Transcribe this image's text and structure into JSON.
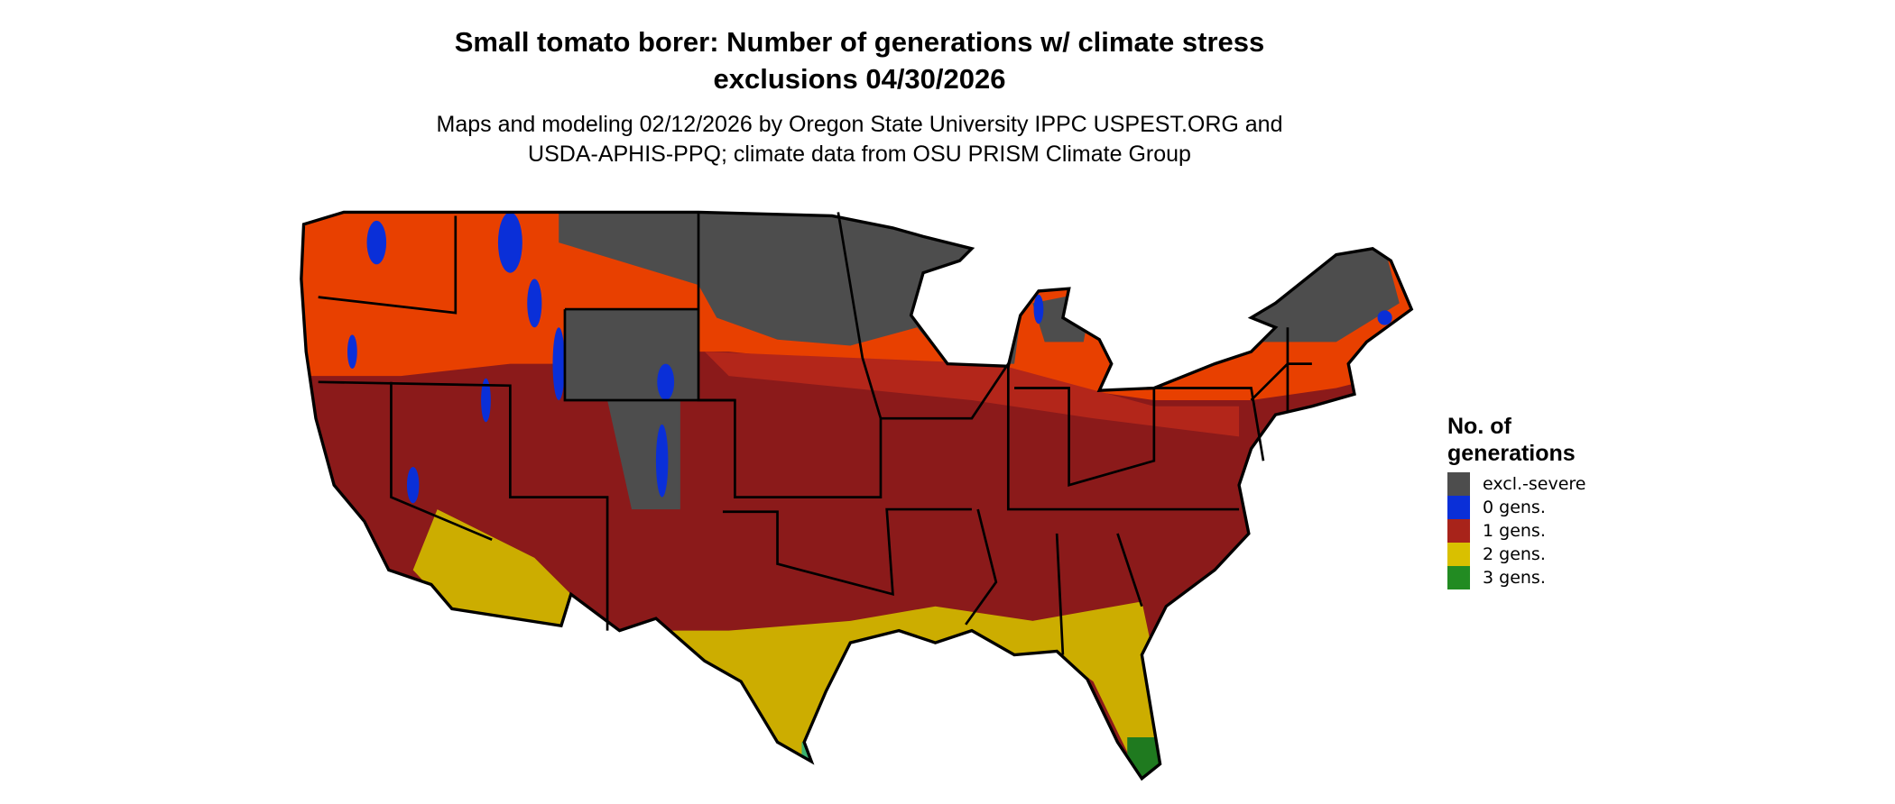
{
  "title": {
    "line1": "Small tomato borer: Number of generations w/ climate stress",
    "line2": "exclusions 04/30/2026"
  },
  "subtitle": {
    "line1": "Maps and modeling 02/12/2026 by Oregon State University IPPC USPEST.ORG and",
    "line2": "USDA-APHIS-PPQ; climate data from OSU PRISM Climate Group"
  },
  "legend": {
    "title_line1": "No. of",
    "title_line2": "generations",
    "items": [
      {
        "label": "excl.-severe",
        "color": "#4d4d4d"
      },
      {
        "label": "0 gens.",
        "color": "#0a2fd8"
      },
      {
        "label": "1 gens.",
        "color": "#a8231a"
      },
      {
        "label": "2 gens.",
        "color": "#d9c000"
      },
      {
        "label": "3 gens.",
        "color": "#228b22"
      }
    ]
  },
  "colors": {
    "one_gen_dark": "#8b1a1a",
    "one_gen_orange": "#e84000",
    "two_gen": "#ccad00",
    "three_gen": "#1f7a1f",
    "excluded": "#4d4d4d",
    "zero_gen": "#0a2fd8"
  }
}
